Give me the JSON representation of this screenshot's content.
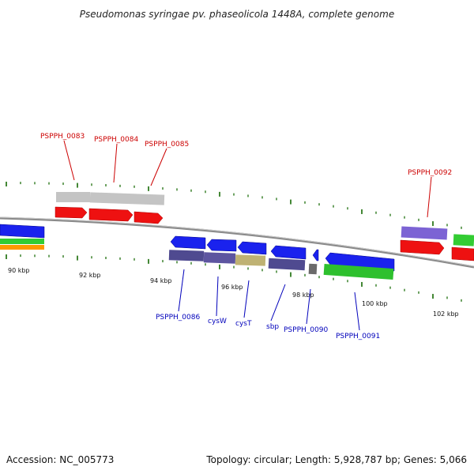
{
  "title": "Pseudomonas syringae pv. phaseolicola 1448A, complete genome",
  "footer": {
    "accession": "Accession: NC_005773",
    "summary": "Topology: circular; Length: 5,928,787 bp; Genes: 5,066"
  },
  "colors": {
    "forward_label": "#cc0000",
    "reverse_label": "#0000bb",
    "leader_line_forward": "#cc0000",
    "leader_line_reverse": "#0000bb",
    "tick": "#2f7a1f",
    "backbone": "#8a8a8a"
  },
  "scale_labels": [
    "90 kbp",
    "92 kbp",
    "94 kbp",
    "96 kbp",
    "98 kbp",
    "100 kbp",
    "102 kbp"
  ],
  "forward_genes": [
    {
      "name": "PSPPH_0083"
    },
    {
      "name": "PSPPH_0084"
    },
    {
      "name": "PSPPH_0085"
    },
    {
      "name": "PSPPH_0092"
    }
  ],
  "reverse_genes": [
    {
      "name": "PSPPH_0086"
    },
    {
      "name": "cysW"
    },
    {
      "name": "cysT"
    },
    {
      "name": "sbp"
    },
    {
      "name": "PSPPH_0090"
    },
    {
      "name": "PSPPH_0091"
    }
  ]
}
